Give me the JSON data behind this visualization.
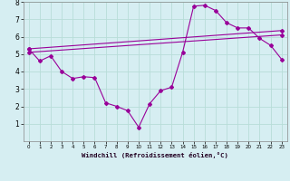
{
  "xlabel": "Windchill (Refroidissement éolien,°C)",
  "background_color": "#d6eef2",
  "grid_color": "#b8ddd8",
  "line_color": "#990099",
  "xlim": [
    -0.5,
    23.5
  ],
  "ylim": [
    0,
    8
  ],
  "xticks": [
    0,
    1,
    2,
    3,
    4,
    5,
    6,
    7,
    8,
    9,
    10,
    11,
    12,
    13,
    14,
    15,
    16,
    17,
    18,
    19,
    20,
    21,
    22,
    23
  ],
  "yticks": [
    1,
    2,
    3,
    4,
    5,
    6,
    7,
    8
  ],
  "line1_x": [
    0,
    1,
    2,
    3,
    4,
    5,
    6,
    7,
    8,
    9,
    10,
    11,
    12,
    13,
    14,
    15,
    16,
    17,
    18,
    19,
    20,
    21,
    22,
    23
  ],
  "line1_y": [
    5.3,
    4.6,
    4.9,
    4.0,
    3.6,
    3.7,
    3.65,
    2.2,
    2.0,
    1.75,
    0.8,
    2.15,
    2.9,
    3.1,
    5.1,
    7.75,
    7.8,
    7.5,
    6.8,
    6.5,
    6.5,
    5.9,
    5.5,
    4.7
  ],
  "line2_x": [
    0,
    23
  ],
  "line2_y": [
    5.3,
    6.35
  ],
  "line3_x": [
    0,
    23
  ],
  "line3_y": [
    5.1,
    6.1
  ]
}
